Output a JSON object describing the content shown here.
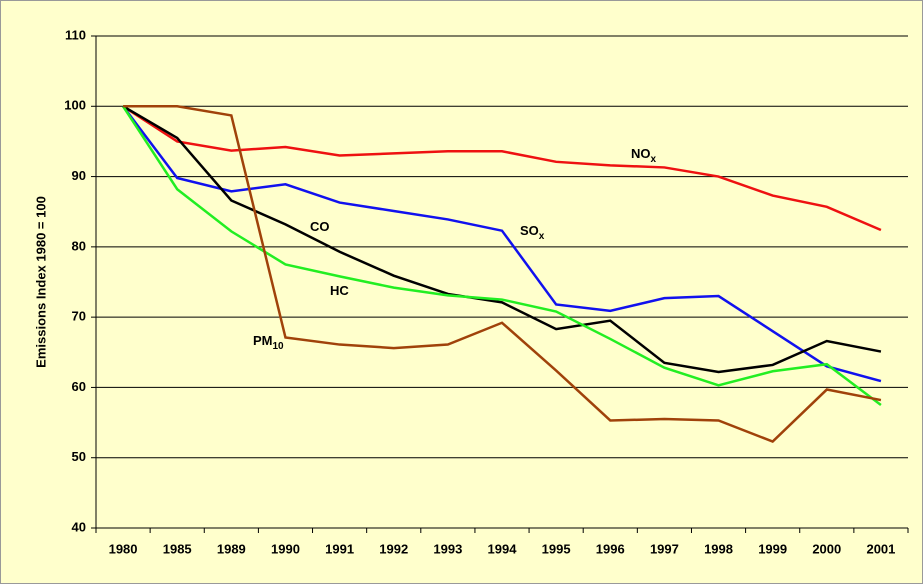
{
  "chart_data": {
    "type": "line",
    "y_axis_label": "Emissions Index 1980 = 100",
    "categories": [
      "1980",
      "1985",
      "1989",
      "1990",
      "1991",
      "1992",
      "1993",
      "1994",
      "1995",
      "1996",
      "1997",
      "1998",
      "1999",
      "2000",
      "2001"
    ],
    "series": [
      {
        "name": "NO",
        "subscript": "x",
        "color": "#ee1111",
        "values": [
          100,
          95,
          93.7,
          94.2,
          93,
          93.3,
          93.6,
          93.6,
          92.1,
          91.6,
          91.3,
          90,
          87.3,
          85.7,
          82.4
        ]
      },
      {
        "name": "SO",
        "subscript": "x",
        "color": "#1111ee",
        "values": [
          100,
          89.8,
          87.9,
          88.9,
          86.3,
          85.1,
          83.9,
          82.3,
          71.8,
          70.9,
          72.7,
          73,
          68,
          63,
          60.9
        ]
      },
      {
        "name": "CO",
        "color": "#000000",
        "values": [
          100,
          95.5,
          86.6,
          83.2,
          79.3,
          75.9,
          73.3,
          72.1,
          68.3,
          69.5,
          63.5,
          62.2,
          63.2,
          66.6,
          65.1
        ]
      },
      {
        "name": "HC",
        "color": "#22ee22",
        "values": [
          100,
          88.2,
          82.2,
          77.5,
          75.8,
          74.2,
          73.1,
          72.5,
          70.8,
          66.9,
          62.8,
          60.3,
          62.3,
          63.3,
          57.5
        ]
      },
      {
        "name": "PM",
        "subscript": "10",
        "color": "#a0420a",
        "values": [
          100,
          100,
          98.7,
          67.1,
          66.1,
          65.6,
          66.1,
          69.2,
          62.4,
          55.3,
          55.5,
          55.3,
          52.3,
          59.7,
          58.2
        ]
      }
    ],
    "ylim": [
      40,
      110
    ],
    "yticks": [
      40,
      50,
      60,
      70,
      80,
      90,
      100,
      110
    ],
    "grid": true
  }
}
